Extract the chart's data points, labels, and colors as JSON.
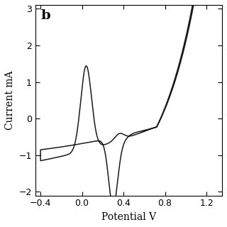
{
  "title": "",
  "xlabel": "Potential V",
  "ylabel": "Current mA",
  "xlim": [
    -0.45,
    1.35
  ],
  "ylim": [
    -2.1,
    3.1
  ],
  "xticks": [
    -0.4,
    0.0,
    0.4,
    0.8,
    1.2
  ],
  "yticks": [
    -2,
    -1,
    0,
    1,
    2,
    3
  ],
  "label": "b",
  "line_color": "#1a1a1a",
  "background_color": "#ffffff",
  "figsize": [
    3.2,
    3.2
  ],
  "dpi": 100
}
